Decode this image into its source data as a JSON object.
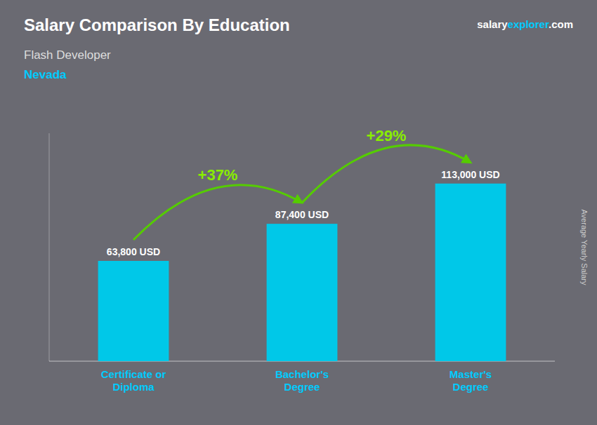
{
  "chart_data": {
    "type": "bar",
    "title": "Salary Comparison By Education",
    "subtitle": "Flash Developer",
    "location": "Nevada",
    "website": [
      "salary",
      "explorer",
      ".com"
    ],
    "ylabel": "Average Yearly Salary",
    "categories": [
      "Certificate or\nDiploma",
      "Bachelor's\nDegree",
      "Master's\nDegree"
    ],
    "values": [
      63800,
      87400,
      113000
    ],
    "value_labels": [
      "63,800 USD",
      "87,400 USD",
      "113,000 USD"
    ],
    "annotations": [
      "+37%",
      "+29%"
    ],
    "color": "#00c8e8",
    "ylim": [
      0,
      145000
    ],
    "data_labels": true,
    "tick_labels": "x"
  }
}
